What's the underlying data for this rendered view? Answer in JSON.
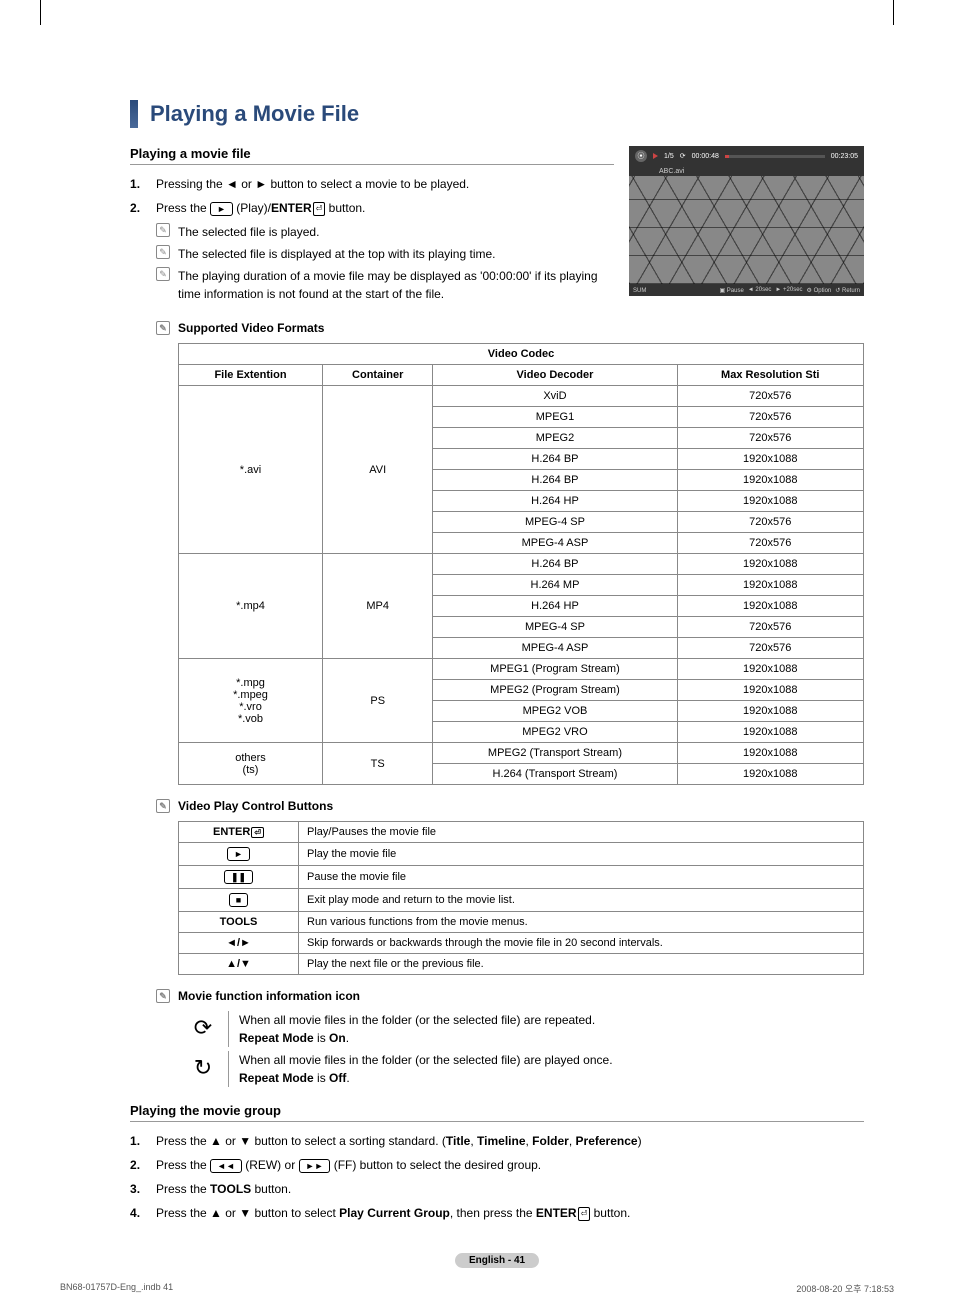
{
  "title": "Playing a Movie File",
  "section1": {
    "heading": "Playing a movie file",
    "step1": "Pressing the ◄ or ► button to select a movie to be played.",
    "step2_pre": "Press the ",
    "step2_play_icon": "►",
    "step2_mid": " (Play)/",
    "step2_enter": "ENTER",
    "step2_enter_icon": "⏎",
    "step2_post": " button.",
    "note1": "The selected file is played.",
    "note2": "The selected file is displayed at the top with its playing time.",
    "note3": "The playing duration of a movie file may be displayed as '00:00:00' if its playing time information is not found at the start of the file."
  },
  "preview": {
    "counter": "1/5",
    "elapsed": "00:00:48",
    "total": "00:23:05",
    "filename": "ABC.avi",
    "sum": "SUM",
    "pause": "Pause",
    "rewind": "20sec",
    "forward": "+20sec",
    "option": "Option",
    "return": "Return"
  },
  "formats": {
    "heading": "Supported Video Formats",
    "header_main": "Video Codec",
    "col1": "File Extention",
    "col2": "Container",
    "col3": "Video Decoder",
    "col4": "Max Resolution Sti",
    "rows": {
      "avi_ext": "*.avi",
      "avi_cnt": "AVI",
      "avi_r": [
        {
          "dec": "XviD",
          "res": "720x576"
        },
        {
          "dec": "MPEG1",
          "res": "720x576"
        },
        {
          "dec": "MPEG2",
          "res": "720x576"
        },
        {
          "dec": "H.264 BP",
          "res": "1920x1088"
        },
        {
          "dec": "H.264 BP",
          "res": "1920x1088"
        },
        {
          "dec": "H.264 HP",
          "res": "1920x1088"
        },
        {
          "dec": "MPEG-4 SP",
          "res": "720x576"
        },
        {
          "dec": "MPEG-4 ASP",
          "res": "720x576"
        }
      ],
      "mp4_ext": "*.mp4",
      "mp4_cnt": "MP4",
      "mp4_r": [
        {
          "dec": "H.264 BP",
          "res": "1920x1088"
        },
        {
          "dec": "H.264 MP",
          "res": "1920x1088"
        },
        {
          "dec": "H.264 HP",
          "res": "1920x1088"
        },
        {
          "dec": "MPEG-4 SP",
          "res": "720x576"
        },
        {
          "dec": "MPEG-4 ASP",
          "res": "720x576"
        }
      ],
      "ps_ext": [
        "*.mpg",
        "*.mpeg",
        "*.vro",
        "*.vob"
      ],
      "ps_cnt": "PS",
      "ps_r": [
        {
          "dec": "MPEG1 (Program Stream)",
          "res": "1920x1088"
        },
        {
          "dec": "MPEG2 (Program Stream)",
          "res": "1920x1088"
        },
        {
          "dec": "MPEG2 VOB",
          "res": "1920x1088"
        },
        {
          "dec": "MPEG2 VRO",
          "res": "1920x1088"
        }
      ],
      "ts_ext": [
        "others",
        "(ts)"
      ],
      "ts_cnt": "TS",
      "ts_r": [
        {
          "dec": "MPEG2 (Transport Stream)",
          "res": "1920x1088"
        },
        {
          "dec": "H.264 (Transport Stream)",
          "res": "1920x1088"
        }
      ]
    }
  },
  "controls": {
    "heading": "Video Play Control Buttons",
    "rows": [
      {
        "btn": "ENTER⏎",
        "btn_type": "text",
        "desc": "Play/Pauses the movie file"
      },
      {
        "btn": "►",
        "btn_type": "icon",
        "desc": "Play the movie file"
      },
      {
        "btn": "❚❚",
        "btn_type": "icon",
        "desc": "Pause the movie file"
      },
      {
        "btn": "■",
        "btn_type": "icon",
        "desc": "Exit play mode and return to the movie list."
      },
      {
        "btn": "TOOLS",
        "btn_type": "text",
        "desc": "Run various functions from the movie menus."
      },
      {
        "btn": "◄/►",
        "btn_type": "plain",
        "desc": "Skip forwards or backwards through the movie file in 20 second intervals."
      },
      {
        "btn": "▲/▼",
        "btn_type": "plain",
        "desc": "Play the next file or the previous file."
      }
    ]
  },
  "movieFunc": {
    "heading": "Movie function information icon",
    "row1_line1": "When all movie files in the folder (or the selected file) are repeated.",
    "row1_line2_b": "Repeat Mode",
    "row1_line2_mid": " is ",
    "row1_line2_b2": "On",
    "row1_line2_end": ".",
    "row2_line1": "When all movie files in the folder (or the selected file) are played once.",
    "row2_line2_b": "Repeat Mode",
    "row2_line2_mid": " is ",
    "row2_line2_b2": "Off",
    "row2_line2_end": "."
  },
  "section2": {
    "heading": "Playing the movie group",
    "step1_pre": "Press the ▲ or ▼ button to select a sorting standard. (",
    "step1_b": [
      "Title",
      "Timeline",
      "Folder",
      "Preference"
    ],
    "step1_post": ")",
    "step2_pre": "Press the ",
    "step2_rew": "◄◄",
    "step2_mid1": " (REW) or ",
    "step2_ff": "►►",
    "step2_mid2": " (FF) button to select the desired group.",
    "step3_pre": "Press the ",
    "step3_b": "TOOLS",
    "step3_post": " button.",
    "step4_pre": "Press the ▲ or ▼ button to select ",
    "step4_b": "Play Current Group",
    "step4_mid": ", then press the ",
    "step4_enter": "ENTER",
    "step4_icon": "⏎",
    "step4_post": " button."
  },
  "pageNum": "English - 41",
  "footer": {
    "left": "BN68-01757D-Eng_.indb   41",
    "right": "2008-08-20   오후 7:18:53"
  }
}
